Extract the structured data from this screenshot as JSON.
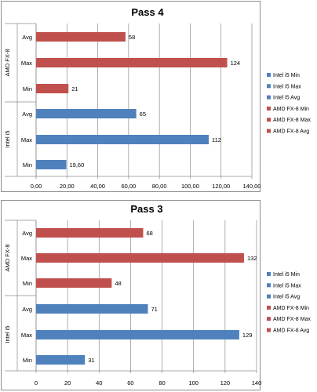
{
  "chart_data": [
    {
      "type": "bar",
      "orientation": "horizontal",
      "title": "Pass 4",
      "groups": [
        {
          "label": "AMD FX-8",
          "categories": [
            "Avg",
            "Max",
            "Min"
          ],
          "values": [
            58,
            124,
            21
          ],
          "value_labels": [
            "58",
            "124",
            "21"
          ],
          "color": "#c0504d"
        },
        {
          "label": "Intel i5",
          "categories": [
            "Avg",
            "Max",
            "Min"
          ],
          "values": [
            65,
            112,
            19.6
          ],
          "value_labels": [
            "65",
            "112",
            "19,60"
          ],
          "color": "#4f81bd"
        }
      ],
      "xlim": [
        0,
        140
      ],
      "xticks": [
        0,
        20,
        40,
        60,
        80,
        100,
        120,
        140
      ],
      "xtick_labels": [
        "0,00",
        "20,00",
        "40,00",
        "60,00",
        "80,00",
        "100,00",
        "120,00",
        "140,00"
      ],
      "grid": true,
      "legend_position": "right",
      "legend": [
        {
          "label": "Intel i5 Min",
          "color": "#4f81bd"
        },
        {
          "label": "Intel i5 Max",
          "color": "#4f81bd"
        },
        {
          "label": "Intel i5 Avg",
          "color": "#4f81bd"
        },
        {
          "label": "AMD FX-8 Min",
          "color": "#c0504d"
        },
        {
          "label": "AMD FX-8 Max",
          "color": "#c0504d"
        },
        {
          "label": "AMD FX-8 Avg",
          "color": "#c0504d"
        }
      ]
    },
    {
      "type": "bar",
      "orientation": "horizontal",
      "title": "Pass 3",
      "groups": [
        {
          "label": "AMD FX-8",
          "categories": [
            "Avg",
            "Max",
            "Min"
          ],
          "values": [
            68,
            132,
            48
          ],
          "value_labels": [
            "68",
            "132",
            "48"
          ],
          "color": "#c0504d"
        },
        {
          "label": "Intel i5",
          "categories": [
            "Avg",
            "Max",
            "Min"
          ],
          "values": [
            71,
            129,
            31
          ],
          "value_labels": [
            "71",
            "129",
            "31"
          ],
          "color": "#4f81bd"
        }
      ],
      "xlim": [
        0,
        140
      ],
      "xticks": [
        0,
        20,
        40,
        60,
        80,
        100,
        120,
        140
      ],
      "xtick_labels": [
        "0",
        "20",
        "40",
        "60",
        "80",
        "100",
        "120",
        "140"
      ],
      "grid": true,
      "legend_position": "right",
      "legend": [
        {
          "label": "Intel i5 Min",
          "color": "#4f81bd"
        },
        {
          "label": "Intel i5 Max",
          "color": "#4f81bd"
        },
        {
          "label": "Intel i5 Avg",
          "color": "#4f81bd"
        },
        {
          "label": "AMD FX-8 Min",
          "color": "#c0504d"
        },
        {
          "label": "AMD FX-8 Max",
          "color": "#c0504d"
        },
        {
          "label": "AMD FX-8 Avg",
          "color": "#c0504d"
        }
      ]
    }
  ]
}
